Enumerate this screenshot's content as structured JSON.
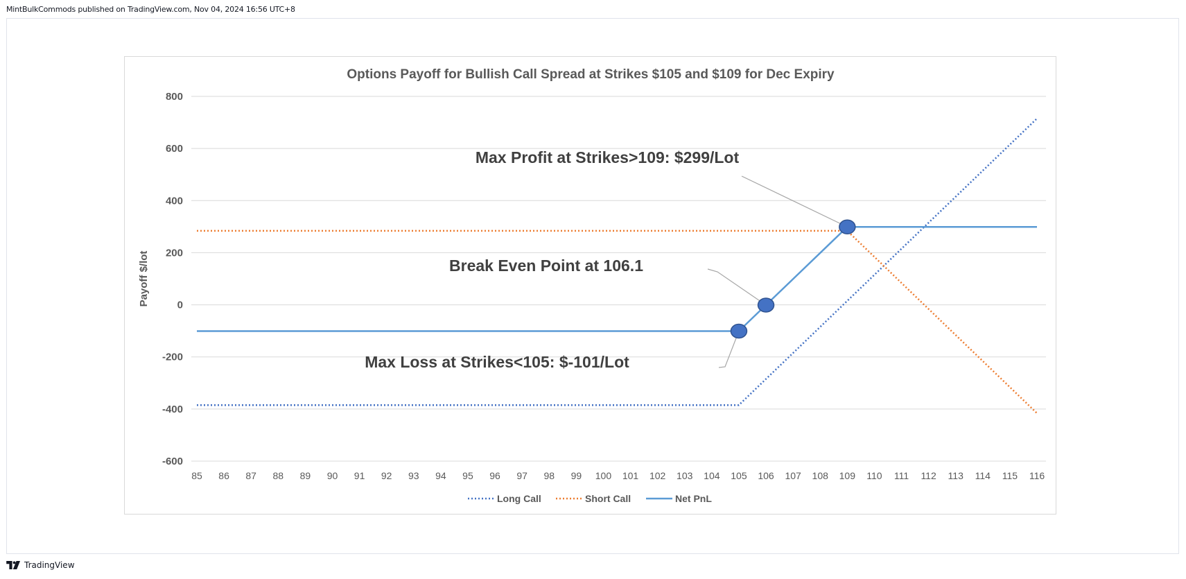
{
  "header": {
    "text": "MintBulkCommods published on TradingView.com, Nov 04, 2024 16:56 UTC+8"
  },
  "footer": {
    "brand": "TradingView",
    "logo_icon": "tradingview-logo-icon"
  },
  "colors": {
    "long_call": "#4472C4",
    "short_call": "#ED7D31",
    "net_pnl": "#5B9BD5",
    "marker_fill": "#4472C4",
    "marker_stroke": "#2F528F",
    "grid": "#d9d9d9",
    "text": "#595959"
  },
  "chart_data": {
    "type": "line",
    "title": "Options Payoff for Bullish Call Spread at Strikes $105 and $109 for Dec Expiry",
    "xlabel": "",
    "ylabel": "Payoff $/lot",
    "x": [
      85,
      86,
      87,
      88,
      89,
      90,
      91,
      92,
      93,
      94,
      95,
      96,
      97,
      98,
      99,
      100,
      101,
      102,
      103,
      104,
      105,
      106,
      107,
      108,
      109,
      110,
      111,
      112,
      113,
      114,
      115,
      116
    ],
    "ylim": [
      -600,
      800
    ],
    "yticks": [
      -600,
      -400,
      -200,
      0,
      200,
      400,
      600,
      800
    ],
    "grid": true,
    "legend_position": "bottom",
    "series": [
      {
        "name": "Long Call",
        "style": "dotted",
        "values": [
          -385,
          -385,
          -385,
          -385,
          -385,
          -385,
          -385,
          -385,
          -385,
          -385,
          -385,
          -385,
          -385,
          -385,
          -385,
          -385,
          -385,
          -385,
          -385,
          -385,
          -385,
          -285,
          -185,
          -85,
          15,
          115,
          215,
          315,
          415,
          515,
          615,
          715
        ]
      },
      {
        "name": "Short Call",
        "style": "dotted",
        "values": [
          284,
          284,
          284,
          284,
          284,
          284,
          284,
          284,
          284,
          284,
          284,
          284,
          284,
          284,
          284,
          284,
          284,
          284,
          284,
          284,
          284,
          284,
          284,
          284,
          284,
          184,
          84,
          -16,
          -116,
          -216,
          -316,
          -416
        ]
      },
      {
        "name": "Net PnL",
        "style": "solid",
        "values": [
          -101,
          -101,
          -101,
          -101,
          -101,
          -101,
          -101,
          -101,
          -101,
          -101,
          -101,
          -101,
          -101,
          -101,
          -101,
          -101,
          -101,
          -101,
          -101,
          -101,
          -101,
          -1,
          99,
          199,
          299,
          299,
          299,
          299,
          299,
          299,
          299,
          299
        ]
      }
    ],
    "markers": [
      {
        "x": 105,
        "y": -101
      },
      {
        "x": 106,
        "y": -1
      },
      {
        "x": 109,
        "y": 299
      }
    ],
    "annotations": [
      {
        "text": "Max Profit at Strikes>109: $299/Lot",
        "x": 109,
        "y": 299
      },
      {
        "text": "Break Even Point at 106.1",
        "x": 106,
        "y": -1
      },
      {
        "text": "Max Loss at Strikes<105: $-101/Lot",
        "x": 105,
        "y": -101
      }
    ]
  }
}
